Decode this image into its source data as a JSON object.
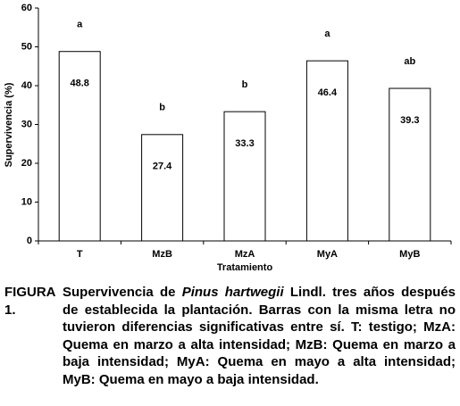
{
  "chart_data": {
    "type": "bar",
    "x_label": "Tratamiento",
    "y_label": "Supervivencia (%)",
    "categories": [
      "T",
      "MzB",
      "MzA",
      "MyA",
      "MyB"
    ],
    "values": [
      48.8,
      27.4,
      33.3,
      46.4,
      39.3
    ],
    "letters": [
      "a",
      "b",
      "b",
      "a",
      "ab"
    ],
    "color": "#ffffff",
    "ylim": [
      0,
      60
    ],
    "yticks": [
      0,
      10,
      20,
      30,
      40,
      50,
      60
    ]
  },
  "caption": {
    "label": "FIGURA 1.",
    "before": "Supervivencia de ",
    "species": "Pinus hartwegii",
    "after": " Lindl. tres años después de establecida la plantación. Barras con la misma letra no tuvieron diferencias significativas entre sí.  T: testigo; MzA: Quema en marzo a alta intensidad; MzB: Quema en marzo a baja intensidad; MyA: Quema en mayo a alta intensidad; MyB: Quema en mayo a baja intensidad."
  }
}
